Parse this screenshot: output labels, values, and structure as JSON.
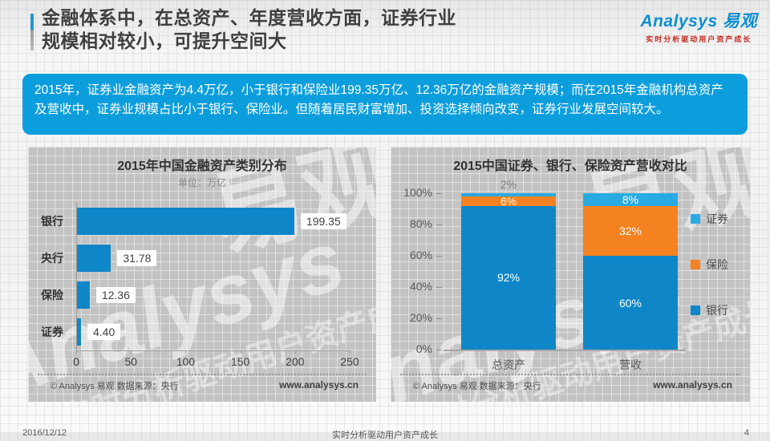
{
  "slide": {
    "title_line1": "金融体系中，在总资产、年度营收方面，证券行业",
    "title_line2": "规模相对较小，可提升空间大",
    "summary": "2015年，证券业金融资产为4.4万亿，小于银行和保险业199.35万亿、12.36万亿的金融资产规模；而在2015年金融机构总资产及营收中，证券业规模占比小于银行、保险业。但随着居民财富增加、投资选择倾向改变，证券行业发展空间较大。",
    "footer": {
      "date": "2016/12/12",
      "center": "实时分析驱动用户资产成长",
      "page": "4"
    }
  },
  "logo": {
    "brand": "Analysys 易观",
    "slogan": "实时分析驱动用户资产成长"
  },
  "watermark": {
    "en": "Analysys",
    "big": "易观",
    "slogan": "实时分析驱动用户资产成长"
  },
  "colors": {
    "bank_blue": "#0e86c8",
    "insurance_orange": "#f58220",
    "securities_lightblue": "#29abe2",
    "summary_bg": "#0c9edc"
  },
  "chart_data": [
    {
      "type": "bar",
      "orientation": "horizontal",
      "title": "2015年中国金融资产类别分布",
      "unit_label": "单位：万亿",
      "categories": [
        "银行",
        "央行",
        "保险",
        "证券"
      ],
      "values": [
        199.35,
        31.78,
        12.36,
        4.4
      ],
      "value_labels": [
        "199.35",
        "31.78",
        "12.36",
        "4.40"
      ],
      "xlim": [
        0,
        250
      ],
      "x_ticks": [
        "0",
        "50",
        "100",
        "150",
        "200",
        "250"
      ],
      "bar_color": "#0e86c8",
      "grid": false,
      "source": "© Analysys 易观   数据来源：央行",
      "website": "www.analysys.cn"
    },
    {
      "type": "bar",
      "stacked": true,
      "percent": true,
      "title": "2015中国证券、银行、保险资产营收对比",
      "categories": [
        "总资产",
        "营收"
      ],
      "series": [
        {
          "name": "银行",
          "values": [
            92,
            60
          ],
          "color": "#0e86c8"
        },
        {
          "name": "保险",
          "values": [
            6,
            32
          ],
          "color": "#f58220"
        },
        {
          "name": "证券",
          "values": [
            2,
            8
          ],
          "color": "#29abe2"
        }
      ],
      "ylim": [
        0,
        100
      ],
      "y_ticks": [
        "100%",
        "80%",
        "60%",
        "40%",
        "20%",
        "0%"
      ],
      "legend": [
        "证券",
        "保险",
        "银行"
      ],
      "legend_position": "right",
      "source": "© Analysys 易观  数据来源：央行",
      "website": "www.analysys.cn"
    }
  ]
}
